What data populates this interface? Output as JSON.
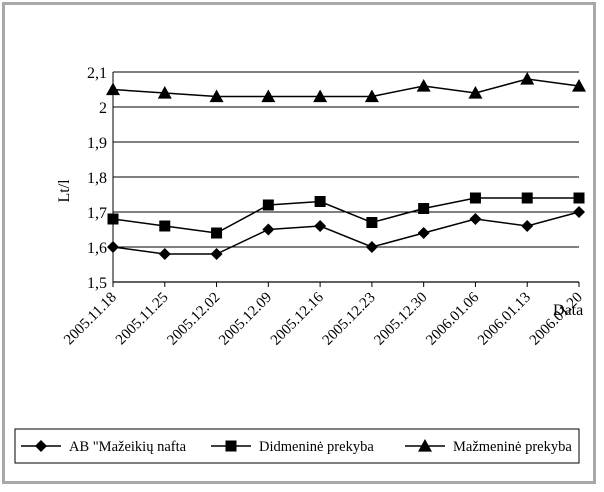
{
  "chart_data": {
    "type": "line",
    "title": "",
    "xlabel": "Data",
    "ylabel": "Lt/l",
    "ylim": [
      1.5,
      2.1
    ],
    "yticks": [
      1.5,
      1.6,
      1.7,
      1.8,
      1.9,
      2.0,
      2.1
    ],
    "ytick_labels": [
      "1,5",
      "1,6",
      "1,7",
      "1,8",
      "1,9",
      "2",
      "2,1"
    ],
    "grid": true,
    "legend_position": "bottom",
    "categories": [
      "2005.11.18",
      "2005.11.25",
      "2005.12.02",
      "2005.12.09",
      "2005.12.16",
      "2005.12.23",
      "2005.12.30",
      "2006.01.06",
      "2006.01.13",
      "2006.01.20"
    ],
    "series": [
      {
        "name": "AB \"Mažeikių nafta",
        "marker": "diamond",
        "values": [
          1.6,
          1.58,
          1.58,
          1.65,
          1.66,
          1.6,
          1.64,
          1.68,
          1.66,
          1.7
        ]
      },
      {
        "name": "Didmeninė prekyba",
        "marker": "square",
        "values": [
          1.68,
          1.66,
          1.64,
          1.72,
          1.73,
          1.67,
          1.71,
          1.74,
          1.74,
          1.74
        ]
      },
      {
        "name": "Mažmeninė prekyba",
        "marker": "triangle",
        "values": [
          2.05,
          2.04,
          2.03,
          2.03,
          2.03,
          2.03,
          2.06,
          2.04,
          2.08,
          2.06
        ]
      }
    ]
  }
}
